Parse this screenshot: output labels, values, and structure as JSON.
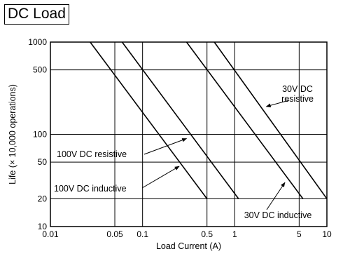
{
  "chart_data": {
    "type": "line",
    "title": "DC Load",
    "xlabel": "Load Current (A)",
    "ylabel": "Life (× 10,000 operations)",
    "x_scale": "log",
    "y_scale": "log",
    "xlim": [
      0.01,
      10
    ],
    "ylim": [
      10,
      1000
    ],
    "grid": true,
    "x_ticks": [
      {
        "value": 0.01,
        "label": "0.01"
      },
      {
        "value": 0.05,
        "label": "0.05"
      },
      {
        "value": 0.1,
        "label": "0.1"
      },
      {
        "value": 0.5,
        "label": "0.5"
      },
      {
        "value": 1,
        "label": "1"
      },
      {
        "value": 5,
        "label": "5"
      },
      {
        "value": 10,
        "label": "10"
      }
    ],
    "y_ticks": [
      {
        "value": 10,
        "label": "10"
      },
      {
        "value": 20,
        "label": "20"
      },
      {
        "value": 50,
        "label": "50"
      },
      {
        "value": 100,
        "label": "100"
      },
      {
        "value": 500,
        "label": "500"
      },
      {
        "value": 1000,
        "label": "1000"
      }
    ],
    "series": [
      {
        "name": "100V DC inductive",
        "points": [
          [
            0.027,
            1000
          ],
          [
            0.5,
            20
          ]
        ]
      },
      {
        "name": "100V DC resistive",
        "points": [
          [
            0.06,
            1000
          ],
          [
            1.1,
            20
          ]
        ]
      },
      {
        "name": "30V DC inductive",
        "points": [
          [
            0.3,
            1000
          ],
          [
            5.5,
            20
          ]
        ]
      },
      {
        "name": "30V DC resistive",
        "points": [
          [
            0.6,
            1000
          ],
          [
            10,
            20
          ]
        ]
      }
    ],
    "annotations": [
      {
        "id": "ann-30v-resistive",
        "lines": [
          "30V DC",
          "resistive"
        ],
        "series": "30V DC resistive",
        "point": [
          2.2,
          200
        ]
      },
      {
        "id": "ann-100v-resistive",
        "lines": [
          "100V DC resistive"
        ],
        "series": "100V DC resistive",
        "point": [
          0.3,
          90
        ]
      },
      {
        "id": "ann-100v-inductive",
        "lines": [
          "100V DC inductive"
        ],
        "series": "100V DC inductive",
        "point": [
          0.25,
          45
        ]
      },
      {
        "id": "ann-30v-inductive",
        "lines": [
          "30V DC inductive"
        ],
        "series": "30V DC inductive",
        "point": [
          3.5,
          30
        ]
      }
    ]
  }
}
